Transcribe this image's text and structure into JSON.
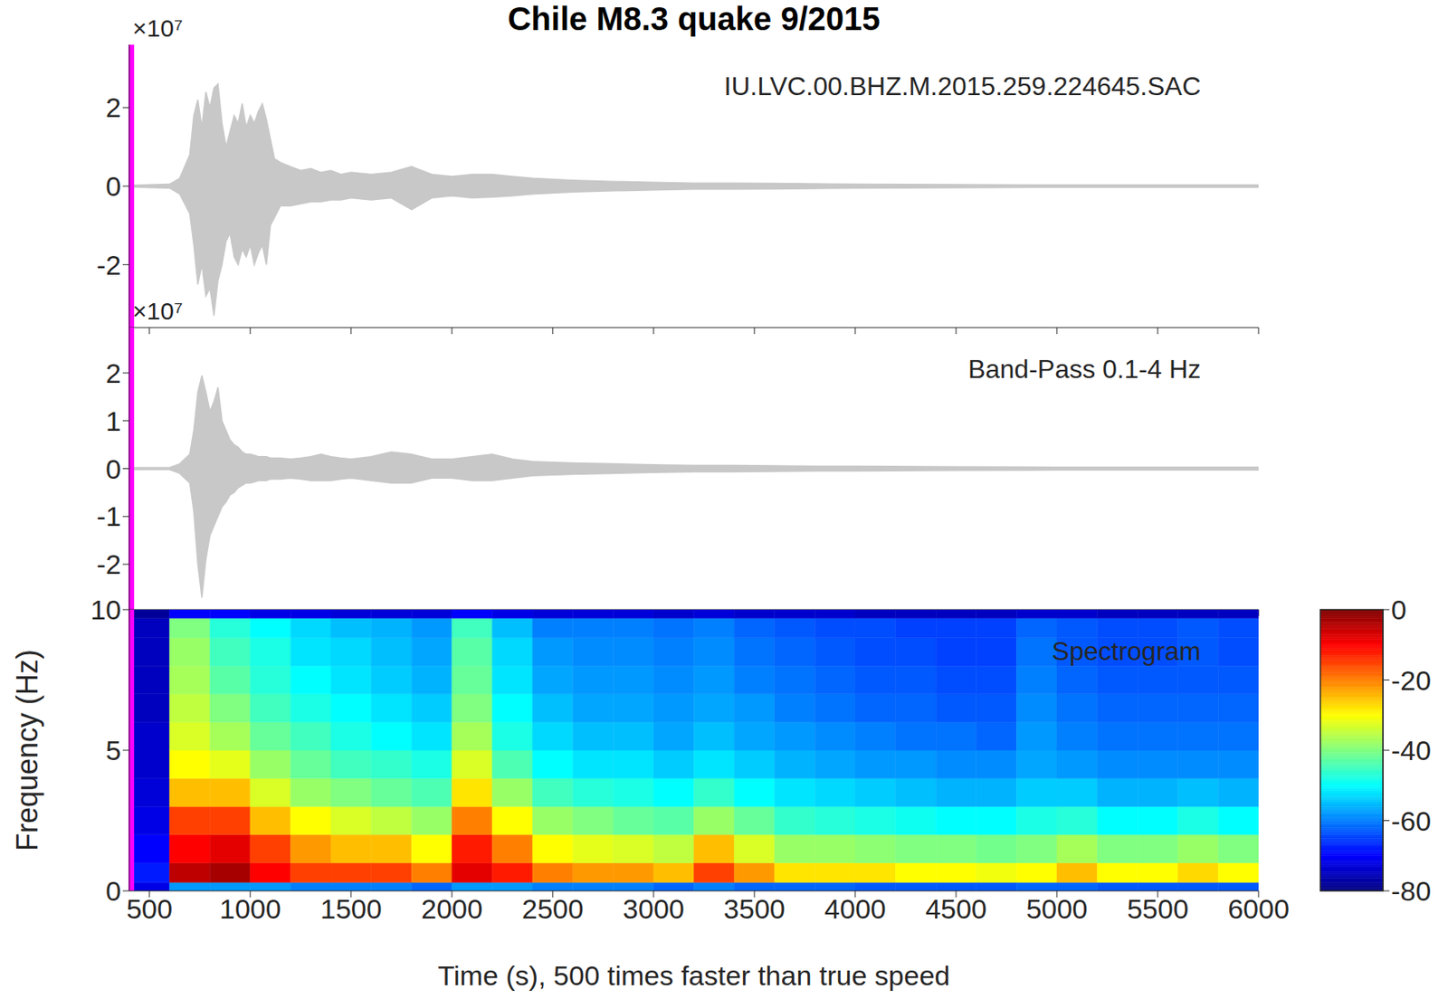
{
  "chart_data": [
    {
      "type": "area",
      "title": "Chile M8.3 quake 9/2015",
      "annotation": "IU.LVC.00.BHZ.M.2015.259.224645.SAC",
      "y_exponent_label": "×10⁷",
      "color": "#c8c8c8",
      "x": [
        400,
        600,
        650,
        700,
        720,
        740,
        760,
        780,
        800,
        820,
        840,
        860,
        880,
        900,
        920,
        940,
        960,
        980,
        1000,
        1020,
        1040,
        1060,
        1080,
        1100,
        1120,
        1150,
        1200,
        1250,
        1300,
        1350,
        1400,
        1450,
        1500,
        1600,
        1700,
        1800,
        1900,
        2000,
        2100,
        2200,
        2300,
        2400,
        2600,
        2800,
        3000,
        3200,
        3400,
        3600,
        3800,
        4000,
        4500,
        5000,
        5500,
        6000
      ],
      "upper": [
        0.02,
        0.05,
        0.2,
        0.8,
        1.8,
        2.2,
        1.5,
        2.4,
        2.0,
        2.5,
        2.6,
        1.6,
        1.0,
        1.4,
        1.8,
        1.6,
        2.1,
        1.5,
        1.8,
        1.6,
        1.9,
        2.1,
        1.7,
        1.2,
        0.7,
        0.6,
        0.5,
        0.4,
        0.45,
        0.35,
        0.4,
        0.3,
        0.35,
        0.3,
        0.35,
        0.5,
        0.3,
        0.25,
        0.3,
        0.3,
        0.25,
        0.2,
        0.15,
        0.12,
        0.1,
        0.08,
        0.08,
        0.07,
        0.06,
        0.05,
        0.04,
        0.03,
        0.03,
        0.03
      ],
      "lower": [
        -0.02,
        -0.05,
        -0.2,
        -0.7,
        -1.5,
        -2.5,
        -2.0,
        -2.8,
        -2.6,
        -3.3,
        -2.4,
        -2.0,
        -1.4,
        -1.2,
        -1.8,
        -2.0,
        -1.6,
        -1.8,
        -1.5,
        -2.0,
        -1.7,
        -1.5,
        -2.0,
        -1.0,
        -0.8,
        -0.5,
        -0.5,
        -0.45,
        -0.4,
        -0.4,
        -0.35,
        -0.35,
        -0.3,
        -0.35,
        -0.3,
        -0.6,
        -0.3,
        -0.25,
        -0.3,
        -0.28,
        -0.25,
        -0.2,
        -0.15,
        -0.12,
        -0.1,
        -0.08,
        -0.08,
        -0.07,
        -0.06,
        -0.05,
        -0.04,
        -0.03,
        -0.03,
        -0.03
      ],
      "xlim": [
        400,
        6000
      ],
      "xticks": [
        500,
        1000,
        1500,
        2000,
        2500,
        3000,
        3500,
        4000,
        4500,
        5000,
        5500,
        6000
      ],
      "ylim": [
        -3.6,
        3.6
      ],
      "yticks": [
        -2,
        0,
        2
      ],
      "tick_labels": "y",
      "cursor_time": 410
    },
    {
      "type": "area",
      "annotation": "Band-Pass 0.1-4 Hz",
      "y_exponent_label": "×10⁷",
      "color": "#c8c8c8",
      "x": [
        400,
        600,
        650,
        700,
        720,
        740,
        760,
        780,
        800,
        820,
        840,
        860,
        880,
        900,
        920,
        940,
        960,
        980,
        1000,
        1020,
        1040,
        1060,
        1080,
        1100,
        1120,
        1150,
        1200,
        1250,
        1300,
        1350,
        1400,
        1450,
        1500,
        1600,
        1700,
        1800,
        1900,
        2000,
        2100,
        2200,
        2300,
        2400,
        2600,
        2800,
        3000,
        3200,
        3400,
        3600,
        3800,
        4000,
        4500,
        5000,
        5500,
        6000
      ],
      "upper": [
        0.02,
        0.02,
        0.1,
        0.3,
        0.8,
        1.6,
        1.95,
        1.6,
        1.2,
        1.4,
        1.7,
        1.0,
        0.8,
        0.6,
        0.5,
        0.45,
        0.35,
        0.3,
        0.3,
        0.28,
        0.25,
        0.25,
        0.25,
        0.22,
        0.22,
        0.22,
        0.2,
        0.22,
        0.25,
        0.3,
        0.25,
        0.22,
        0.2,
        0.25,
        0.35,
        0.3,
        0.2,
        0.2,
        0.25,
        0.3,
        0.2,
        0.15,
        0.12,
        0.1,
        0.08,
        0.07,
        0.07,
        0.06,
        0.05,
        0.05,
        0.04,
        0.03,
        0.03,
        0.03
      ],
      "lower": [
        -0.02,
        -0.02,
        -0.1,
        -0.3,
        -0.9,
        -2.0,
        -2.7,
        -1.9,
        -1.4,
        -1.2,
        -1.0,
        -0.8,
        -0.7,
        -0.55,
        -0.5,
        -0.4,
        -0.35,
        -0.3,
        -0.3,
        -0.28,
        -0.25,
        -0.25,
        -0.25,
        -0.22,
        -0.22,
        -0.22,
        -0.2,
        -0.22,
        -0.25,
        -0.25,
        -0.25,
        -0.22,
        -0.2,
        -0.25,
        -0.3,
        -0.3,
        -0.2,
        -0.2,
        -0.25,
        -0.25,
        -0.2,
        -0.15,
        -0.12,
        -0.1,
        -0.08,
        -0.07,
        -0.07,
        -0.06,
        -0.05,
        -0.05,
        -0.04,
        -0.03,
        -0.03,
        -0.03
      ],
      "xlim": [
        400,
        6000
      ],
      "xticks": [
        500,
        1000,
        1500,
        2000,
        2500,
        3000,
        3500,
        4000,
        4500,
        5000,
        5500,
        6000
      ],
      "ylim": [
        -2.95,
        2.95
      ],
      "yticks": [
        -2,
        -1,
        0,
        1,
        2
      ],
      "tick_labels": "y",
      "cursor_time": 410
    },
    {
      "type": "heatmap",
      "annotation": "Spectrogram",
      "x_label": "Time (s), 500 times faster than true speed",
      "y_label": "Frequency (Hz)",
      "time_bins": [
        400,
        600,
        800,
        1000,
        1200,
        1400,
        1600,
        1800,
        2000,
        2200,
        2400,
        2600,
        2800,
        3000,
        3200,
        3400,
        3600,
        3800,
        4000,
        4200,
        4400,
        4600,
        4800,
        5000,
        5200,
        5400,
        5600,
        5800,
        6000
      ],
      "freq_bins": [
        0,
        0.3,
        1,
        2,
        3,
        4,
        5,
        6,
        7,
        8,
        9,
        9.7,
        10
      ],
      "cells": [
        [
          -72,
          -68,
          -70,
          -72,
          -73,
          -74,
          -74,
          -75,
          -75,
          -75,
          -75,
          -78
        ],
        [
          -58,
          -5,
          -10,
          -15,
          -25,
          -30,
          -33,
          -35,
          -37,
          -38,
          -40,
          -70
        ],
        [
          -58,
          -3,
          -8,
          -15,
          -25,
          -32,
          -37,
          -40,
          -43,
          -45,
          -47,
          -70
        ],
        [
          -58,
          -10,
          -15,
          -25,
          -33,
          -38,
          -42,
          -45,
          -47,
          -48,
          -50,
          -72
        ],
        [
          -60,
          -15,
          -22,
          -30,
          -38,
          -42,
          -45,
          -48,
          -50,
          -52,
          -53,
          -72
        ],
        [
          -60,
          -15,
          -25,
          -33,
          -40,
          -45,
          -48,
          -50,
          -52,
          -53,
          -55,
          -73
        ],
        [
          -60,
          -15,
          -25,
          -35,
          -42,
          -46,
          -50,
          -52,
          -54,
          -55,
          -56,
          -73
        ],
        [
          -62,
          -20,
          -30,
          -38,
          -44,
          -48,
          -52,
          -54,
          -56,
          -57,
          -58,
          -73
        ],
        [
          -58,
          -8,
          -12,
          -20,
          -28,
          -33,
          -37,
          -40,
          -42,
          -43,
          -45,
          -70
        ],
        [
          -58,
          -12,
          -20,
          -30,
          -38,
          -44,
          -48,
          -50,
          -52,
          -53,
          -55,
          -72
        ],
        [
          -60,
          -20,
          -30,
          -38,
          -45,
          -50,
          -53,
          -55,
          -57,
          -58,
          -60,
          -73
        ],
        [
          -60,
          -22,
          -32,
          -40,
          -47,
          -52,
          -55,
          -57,
          -58,
          -59,
          -60,
          -73
        ],
        [
          -60,
          -22,
          -33,
          -42,
          -48,
          -52,
          -55,
          -57,
          -58,
          -59,
          -60,
          -73
        ],
        [
          -62,
          -25,
          -35,
          -43,
          -50,
          -54,
          -57,
          -58,
          -59,
          -60,
          -61,
          -74
        ],
        [
          -60,
          -15,
          -25,
          -38,
          -46,
          -52,
          -55,
          -57,
          -58,
          -59,
          -60,
          -73
        ],
        [
          -62,
          -22,
          -33,
          -42,
          -50,
          -54,
          -57,
          -58,
          -60,
          -61,
          -62,
          -74
        ],
        [
          -62,
          -28,
          -38,
          -46,
          -52,
          -56,
          -58,
          -60,
          -61,
          -62,
          -63,
          -74
        ],
        [
          -62,
          -28,
          -38,
          -47,
          -53,
          -57,
          -59,
          -61,
          -62,
          -63,
          -64,
          -74
        ],
        [
          -63,
          -28,
          -39,
          -48,
          -54,
          -58,
          -60,
          -62,
          -63,
          -64,
          -64,
          -75
        ],
        [
          -63,
          -30,
          -40,
          -49,
          -55,
          -58,
          -61,
          -62,
          -63,
          -64,
          -65,
          -75
        ],
        [
          -63,
          -30,
          -40,
          -50,
          -56,
          -59,
          -61,
          -63,
          -64,
          -65,
          -65,
          -75
        ],
        [
          -63,
          -31,
          -41,
          -50,
          -56,
          -59,
          -62,
          -63,
          -64,
          -65,
          -65,
          -75
        ],
        [
          -62,
          -30,
          -40,
          -48,
          -54,
          -57,
          -58,
          -59,
          -60,
          -61,
          -62,
          -74
        ],
        [
          -62,
          -25,
          -37,
          -47,
          -54,
          -58,
          -60,
          -61,
          -62,
          -63,
          -63,
          -74
        ],
        [
          -63,
          -30,
          -40,
          -50,
          -56,
          -59,
          -61,
          -62,
          -63,
          -64,
          -64,
          -75
        ],
        [
          -63,
          -30,
          -40,
          -50,
          -56,
          -59,
          -61,
          -62,
          -63,
          -64,
          -64,
          -75
        ],
        [
          -63,
          -27,
          -38,
          -48,
          -55,
          -59,
          -61,
          -62,
          -63,
          -63,
          -63,
          -75
        ],
        [
          -63,
          -30,
          -40,
          -50,
          -56,
          -59,
          -61,
          -62,
          -63,
          -64,
          -64,
          -75
        ]
      ],
      "xlim": [
        400,
        6000
      ],
      "xticks": [
        500,
        1000,
        1500,
        2000,
        2500,
        3000,
        3500,
        4000,
        4500,
        5000,
        5500,
        6000
      ],
      "ylim": [
        0,
        10
      ],
      "yticks": [
        0,
        5,
        10
      ],
      "colorbar_range": [
        -80,
        0
      ],
      "colorbar_ticks": [
        0,
        -20,
        -40,
        -60,
        -80
      ],
      "cursor_time": 410
    }
  ]
}
